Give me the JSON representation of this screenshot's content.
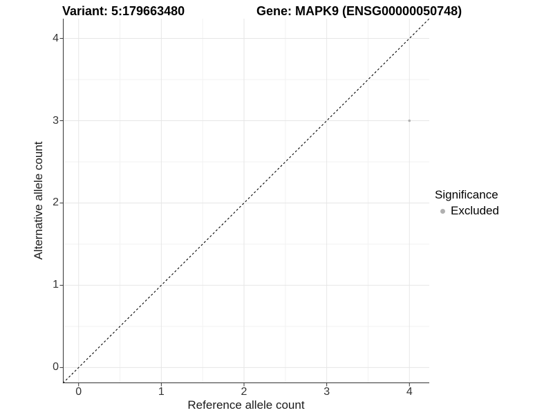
{
  "title_left": "Variant: 5:179663480",
  "title_right": "Gene: MAPK9 (ENSG00000050748)",
  "chart_data": {
    "type": "scatter",
    "title": "Variant: 5:179663480   Gene: MAPK9 (ENSG00000050748)",
    "xlabel": "Reference allele count",
    "ylabel": "Alternative allele count",
    "xlim": [
      -0.19,
      4.24
    ],
    "ylim": [
      -0.19,
      4.24
    ],
    "xticks": [
      0,
      1,
      2,
      3,
      4
    ],
    "yticks": [
      0,
      1,
      2,
      3,
      4
    ],
    "minor_step": 0.5,
    "grid": true,
    "identity_line": {
      "type": "dashed",
      "slope": 1,
      "intercept": 0,
      "color": "#000000"
    },
    "points": [
      {
        "x": 4,
        "y": 3,
        "series": "Excluded"
      }
    ],
    "legend": {
      "title": "Significance",
      "position": "right",
      "items": [
        {
          "label": "Excluded",
          "color": "#b0b0b0"
        }
      ]
    },
    "colors": {
      "point": "#b0b0b0",
      "grid_major": "#e6e6e6",
      "grid_minor": "#f2f2f2",
      "axis_line": "#333333",
      "tick_text": "#333333"
    }
  }
}
